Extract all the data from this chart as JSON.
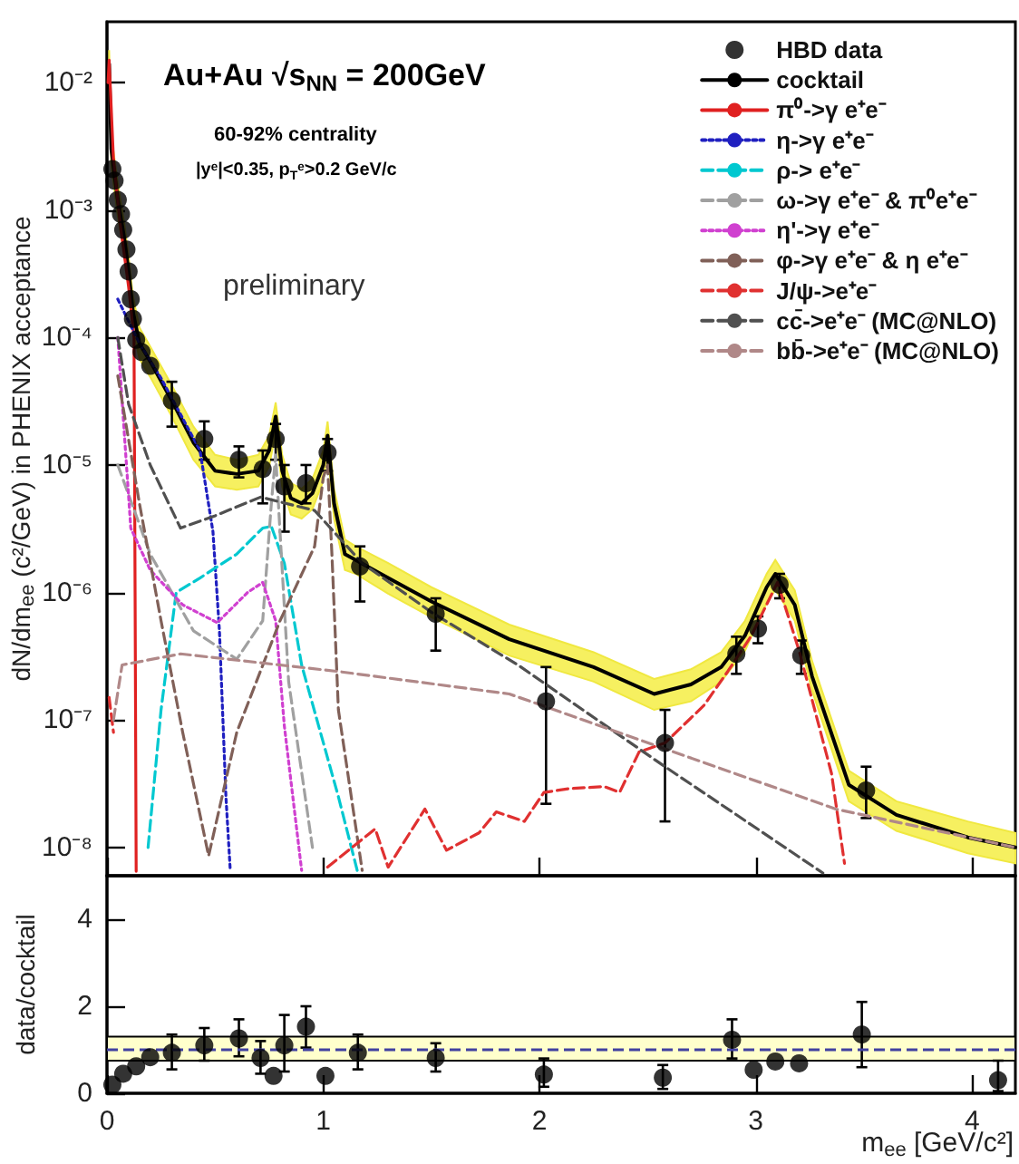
{
  "chart_data": [
    {
      "type": "line",
      "ylabel": "dN/dm$_{ee}$ (c²/GeV) in PHENIX acceptance",
      "annotations": [
        "Au+Au √s$_{NN}$ = 200GeV",
        "60-92% centrality",
        "|yᵉ|<0.35, p$_{T}$ᵉ>0.2 GeV/c",
        "preliminary"
      ],
      "xlim": [
        0,
        4.2
      ],
      "xticks": [
        0,
        1,
        2,
        3,
        4
      ],
      "ylim": [
        6e-09,
        0.03
      ],
      "yticks": [
        {
          "value": 1e-08,
          "label": "10⁻⁸"
        },
        {
          "value": 1e-07,
          "label": "10⁻⁷"
        },
        {
          "value": 1e-06,
          "label": "10⁻⁶"
        },
        {
          "value": 1e-05,
          "label": "10⁻⁵"
        },
        {
          "value": 0.0001,
          "label": "10⁻⁴"
        },
        {
          "value": 0.001,
          "label": "10⁻³"
        },
        {
          "value": 0.01,
          "label": "10⁻²"
        }
      ],
      "log": "y",
      "tick_labels": "y",
      "legend": "top right",
      "series": [
        {
          "name": "HBD data",
          "type": "scatter",
          "marker": "circle",
          "color": "#000000",
          "x": [
            0.025,
            0.035,
            0.05,
            0.065,
            0.075,
            0.09,
            0.1,
            0.11,
            0.12,
            0.135,
            0.16,
            0.2,
            0.3,
            0.45,
            0.61,
            0.72,
            0.78,
            0.82,
            0.92,
            1.02,
            1.17,
            1.52,
            2.03,
            2.58,
            2.91,
            3.01,
            3.11,
            3.21,
            3.51
          ],
          "values": [
            0.0021,
            0.0017,
            0.0012,
            0.00093,
            0.0007,
            0.00049,
            0.00033,
            0.0002,
            0.00014,
            9.6e-05,
            7.7e-05,
            6e-05,
            3.2e-05,
            1.6e-05,
            1.1e-05,
            9.3e-06,
            1.6e-05,
            6.8e-06,
            7.2e-06,
            1.25e-05,
            1.6e-06,
            6.8e-07,
            1.4e-07,
            6.6e-08,
            3.3e-07,
            5.2e-07,
            1.15e-06,
            3.2e-07,
            2.8e-08
          ],
          "errors": [
            null,
            null,
            null,
            null,
            null,
            null,
            null,
            null,
            null,
            null,
            null,
            null,
            [
              2e-05,
              4.5e-05
            ],
            [
              1.1e-05,
              2.2e-05
            ],
            [
              8e-06,
              1.4e-05
            ],
            [
              5e-06,
              1.3e-05
            ],
            [
              1.1e-05,
              2.1e-05
            ],
            [
              3e-06,
              1e-05
            ],
            [
              5e-06,
              1e-05
            ],
            [
              9e-06,
              1.6e-05
            ],
            [
              8.5e-07,
              2.3e-06
            ],
            [
              3.5e-07,
              9e-07
            ],
            [
              2.2e-08,
              2.6e-07
            ],
            [
              1.6e-08,
              1.2e-07
            ],
            [
              2.3e-07,
              4.5e-07
            ],
            [
              4e-07,
              6.5e-07
            ],
            [
              9e-07,
              1.4e-06
            ],
            [
              2.3e-07,
              4.2e-07
            ],
            [
              1.7e-08,
              4.3e-08
            ]
          ]
        },
        {
          "name": "cocktail",
          "marker": "none",
          "line_style": "solid",
          "color": "#000000",
          "x": [
            0.01,
            0.02,
            0.05,
            0.08,
            0.1,
            0.12,
            0.15,
            0.2,
            0.3,
            0.4,
            0.5,
            0.6,
            0.7,
            0.75,
            0.78,
            0.81,
            0.85,
            0.9,
            0.95,
            1.0,
            1.02,
            1.05,
            1.1,
            1.15,
            1.3,
            1.5,
            1.86,
            2.25,
            2.53,
            2.7,
            2.84,
            2.95,
            3.05,
            3.09,
            3.18,
            3.26,
            3.43,
            3.65,
            3.98,
            4.2
          ],
          "values": [
            0.014,
            0.003,
            0.0012,
            0.0006,
            0.00033,
            0.00016,
            9e-05,
            6.5e-05,
            3.2e-05,
            1.5e-05,
            9e-06,
            8.5e-06,
            9e-06,
            1.3e-05,
            2.4e-05,
            9e-06,
            5.5e-06,
            5e-06,
            6e-06,
            1e-05,
            1.7e-05,
            5e-06,
            2e-06,
            1.8e-06,
            1.3e-06,
            8.5e-07,
            4.3e-07,
            2.6e-07,
            1.6e-07,
            1.9e-07,
            2.6e-07,
            4.6e-07,
            1.1e-06,
            1.4e-06,
            8e-07,
            2.2e-07,
            3.1e-08,
            1.8e-08,
            1.2e-08,
            1e-08
          ],
          "lower": [
            0.0105,
            0.00225,
            0.0009,
            0.00045,
            0.00025,
            0.00012,
            6.8e-05,
            4.9e-05,
            2.4e-05,
            1.1e-05,
            6.8e-06,
            6.4e-06,
            6.8e-06,
            9.8e-06,
            1.8e-05,
            6.8e-06,
            4.1e-06,
            3.8e-06,
            4.5e-06,
            7.5e-06,
            1.3e-05,
            3.8e-06,
            1.5e-06,
            1.4e-06,
            9.8e-07,
            6.4e-07,
            3.2e-07,
            2e-07,
            1.2e-07,
            1.4e-07,
            2e-07,
            3.5e-07,
            8.3e-07,
            1.05e-06,
            6e-07,
            1.7e-07,
            2.3e-08,
            1.35e-08,
            9e-09,
            7.5e-09
          ],
          "upper": [
            0.018,
            0.0039,
            0.0016,
            0.00078,
            0.00043,
            0.00021,
            0.00012,
            8.5e-05,
            4.2e-05,
            2e-05,
            1.2e-05,
            1.1e-05,
            1.2e-05,
            1.7e-05,
            3.1e-05,
            1.2e-05,
            7.2e-06,
            6.5e-06,
            7.8e-06,
            1.3e-05,
            2.2e-05,
            6.5e-06,
            2.6e-06,
            2.3e-06,
            1.7e-06,
            1.1e-06,
            5.6e-07,
            3.4e-07,
            2.1e-07,
            2.5e-07,
            3.4e-07,
            6e-07,
            1.4e-06,
            1.8e-06,
            1.04e-06,
            2.9e-07,
            4e-08,
            2.3e-08,
            1.6e-08,
            1.3e-08
          ]
        },
        {
          "name": "π⁰->γ e⁺e⁻",
          "marker": "none",
          "line_style": "solid",
          "color": "#e02020",
          "x": [
            0.005,
            0.01,
            0.03,
            0.06,
            0.1,
            0.125,
            0.13,
            0.135
          ],
          "values": [
            0.01,
            0.015,
            0.0025,
            0.0008,
            0.00025,
            0.0001,
            1e-06,
            6.5e-09
          ]
        },
        {
          "name": "η->γ e⁺e⁻",
          "marker": "none",
          "line_style": "dotted",
          "color": "#2020c0",
          "x": [
            0.05,
            0.15,
            0.25,
            0.43,
            0.49,
            0.52,
            0.55,
            0.57
          ],
          "values": [
            0.0002,
            9e-05,
            4.8e-05,
            1.3e-05,
            3e-06,
            5e-07,
            2.5e-08,
            6.6e-09
          ]
        },
        {
          "name": "ρ-> e⁺e⁻",
          "marker": "none",
          "line_style": "dashed",
          "color": "#00c8d0",
          "x": [
            0.19,
            0.25,
            0.32,
            0.43,
            0.6,
            0.72,
            0.76,
            0.82,
            0.9,
            1.07,
            1.16
          ],
          "values": [
            1e-08,
            1.2e-07,
            1e-06,
            1.3e-06,
            2e-06,
            3.2e-06,
            3.3e-06,
            1.7e-06,
            2.7e-07,
            2.5e-08,
            6.3e-09
          ]
        },
        {
          "name": "ω->γ e⁺e⁻ & π⁰e⁺e⁻",
          "marker": "none",
          "line_style": "dashed",
          "color": "#a0a0a0",
          "x": [
            0.05,
            0.2,
            0.4,
            0.6,
            0.72,
            0.76,
            0.78,
            0.8,
            0.84,
            0.95
          ],
          "values": [
            1e-05,
            2e-06,
            5e-07,
            3e-07,
            6e-07,
            5e-06,
            1.2e-05,
            3e-06,
            2e-07,
            1e-08
          ]
        },
        {
          "name": "η'->γ e⁺e⁻",
          "marker": "none",
          "line_style": "dotted",
          "color": "#d040d0",
          "x": [
            0.05,
            0.11,
            0.2,
            0.35,
            0.51,
            0.65,
            0.72,
            0.78,
            0.82,
            0.9
          ],
          "values": [
            0.0001,
            3.2e-06,
            1.5e-06,
            8e-07,
            5.8e-07,
            1e-06,
            1.2e-06,
            6e-07,
            9e-08,
            6.6e-09
          ]
        },
        {
          "name": "φ->γ e⁺e⁻ & η e⁺e⁻",
          "marker": "none",
          "line_style": "dashed",
          "color": "#806058",
          "x": [
            0.05,
            0.15,
            0.25,
            0.35,
            0.47,
            0.6,
            0.8,
            0.96,
            1.0,
            1.02,
            1.04,
            1.07,
            1.18
          ],
          "values": [
            5e-05,
            5e-06,
            6e-07,
            8e-08,
            8.6e-09,
            8e-08,
            6e-07,
            2.3e-06,
            8e-06,
            1e-05,
            2e-06,
            1.2e-07,
            6.6e-09
          ]
        },
        {
          "name": "J/ψ->e⁺e⁻",
          "marker": "none",
          "line_style": "dashed",
          "color": "#e03030",
          "x": [
            0.01,
            0.03,
            0.5,
            1.02,
            1.24,
            1.3,
            1.47,
            1.57,
            1.72,
            1.8,
            1.93,
            2.02,
            2.14,
            2.3,
            2.37,
            2.46,
            2.58,
            2.76,
            2.87,
            2.98,
            3.1,
            3.2,
            3.35,
            3.41
          ],
          "values": [
            1.5e-07,
            8e-08,
            null,
            7e-09,
            1.4e-08,
            7e-09,
            2e-08,
            9.5e-09,
            1.3e-08,
            1.9e-08,
            1.6e-08,
            2.7e-08,
            2.9e-08,
            3e-08,
            2.7e-08,
            5.6e-08,
            6.6e-08,
            1.3e-07,
            2.4e-07,
            4.6e-07,
            1.2e-06,
            3.5e-07,
            3.8e-08,
            7.5e-09
          ]
        },
        {
          "name": "cc̄->e⁺e⁻ (MC@NLO)",
          "marker": "none",
          "line_style": "dashed",
          "color": "#505050",
          "x": [
            0.05,
            0.1,
            0.2,
            0.34,
            0.5,
            0.71,
            0.96,
            1.18,
            1.5,
            1.9,
            2.58,
            3.31
          ],
          "values": [
            0.0001,
            3e-05,
            1e-05,
            3.2e-06,
            4e-06,
            5.6e-06,
            4.4e-06,
            1.7e-06,
            7e-07,
            2.7e-07,
            4.3e-08,
            6.3e-09
          ]
        },
        {
          "name": "bb̄->e⁺e⁻ (MC@NLO)",
          "marker": "none",
          "line_style": "dashed",
          "color": "#b08888",
          "x": [
            0.03,
            0.07,
            0.34,
            1.07,
            1.86,
            3.37,
            4.2
          ],
          "values": [
            1e-07,
            2.7e-07,
            3.3e-07,
            2.4e-07,
            1.6e-07,
            2e-08,
            1e-08
          ]
        }
      ]
    },
    {
      "type": "scatter",
      "xlabel": "m$_{ee}$ [GeV/c²]",
      "ylabel": "data/cocktail",
      "xlim": [
        0,
        4.2
      ],
      "xticks": [
        0,
        1,
        2,
        3,
        4
      ],
      "ylim": [
        0,
        5
      ],
      "yticks": [
        0,
        2,
        4
      ],
      "marker": "circle",
      "ref_lines": [
        {
          "axis": "y",
          "value": 1,
          "color": "#4040a0",
          "line_style": "dashed"
        }
      ],
      "bands": [
        {
          "axis": "y",
          "from": 0.75,
          "to": 1.3,
          "color": "#ffffcc"
        }
      ],
      "series": [
        {
          "color": "#000000",
          "x": [
            0.025,
            0.075,
            0.135,
            0.2,
            0.3,
            0.45,
            0.61,
            0.71,
            0.77,
            0.82,
            0.92,
            1.01,
            1.16,
            1.52,
            2.02,
            2.57,
            2.89,
            2.99,
            3.09,
            3.2,
            3.49,
            4.12
          ],
          "values": [
            0.2,
            0.45,
            0.62,
            0.83,
            0.93,
            1.1,
            1.26,
            0.81,
            0.4,
            1.1,
            1.53,
            0.4,
            0.93,
            0.81,
            0.43,
            0.36,
            1.23,
            0.54,
            0.73,
            0.69,
            1.35,
            0.3
          ],
          "errors": [
            null,
            null,
            null,
            null,
            [
              0.55,
              1.35
            ],
            [
              0.75,
              1.5
            ],
            [
              0.85,
              1.7
            ],
            [
              0.45,
              1.2
            ],
            null,
            [
              0.5,
              1.8
            ],
            [
              1.05,
              2
            ],
            null,
            [
              0.55,
              1.35
            ],
            [
              0.5,
              1.15
            ],
            [
              0.15,
              0.8
            ],
            [
              0.1,
              0.65
            ],
            [
              0.8,
              1.7
            ],
            null,
            null,
            null,
            [
              0.6,
              2.1
            ],
            [
              0.05,
              0.75
            ]
          ]
        }
      ]
    }
  ]
}
